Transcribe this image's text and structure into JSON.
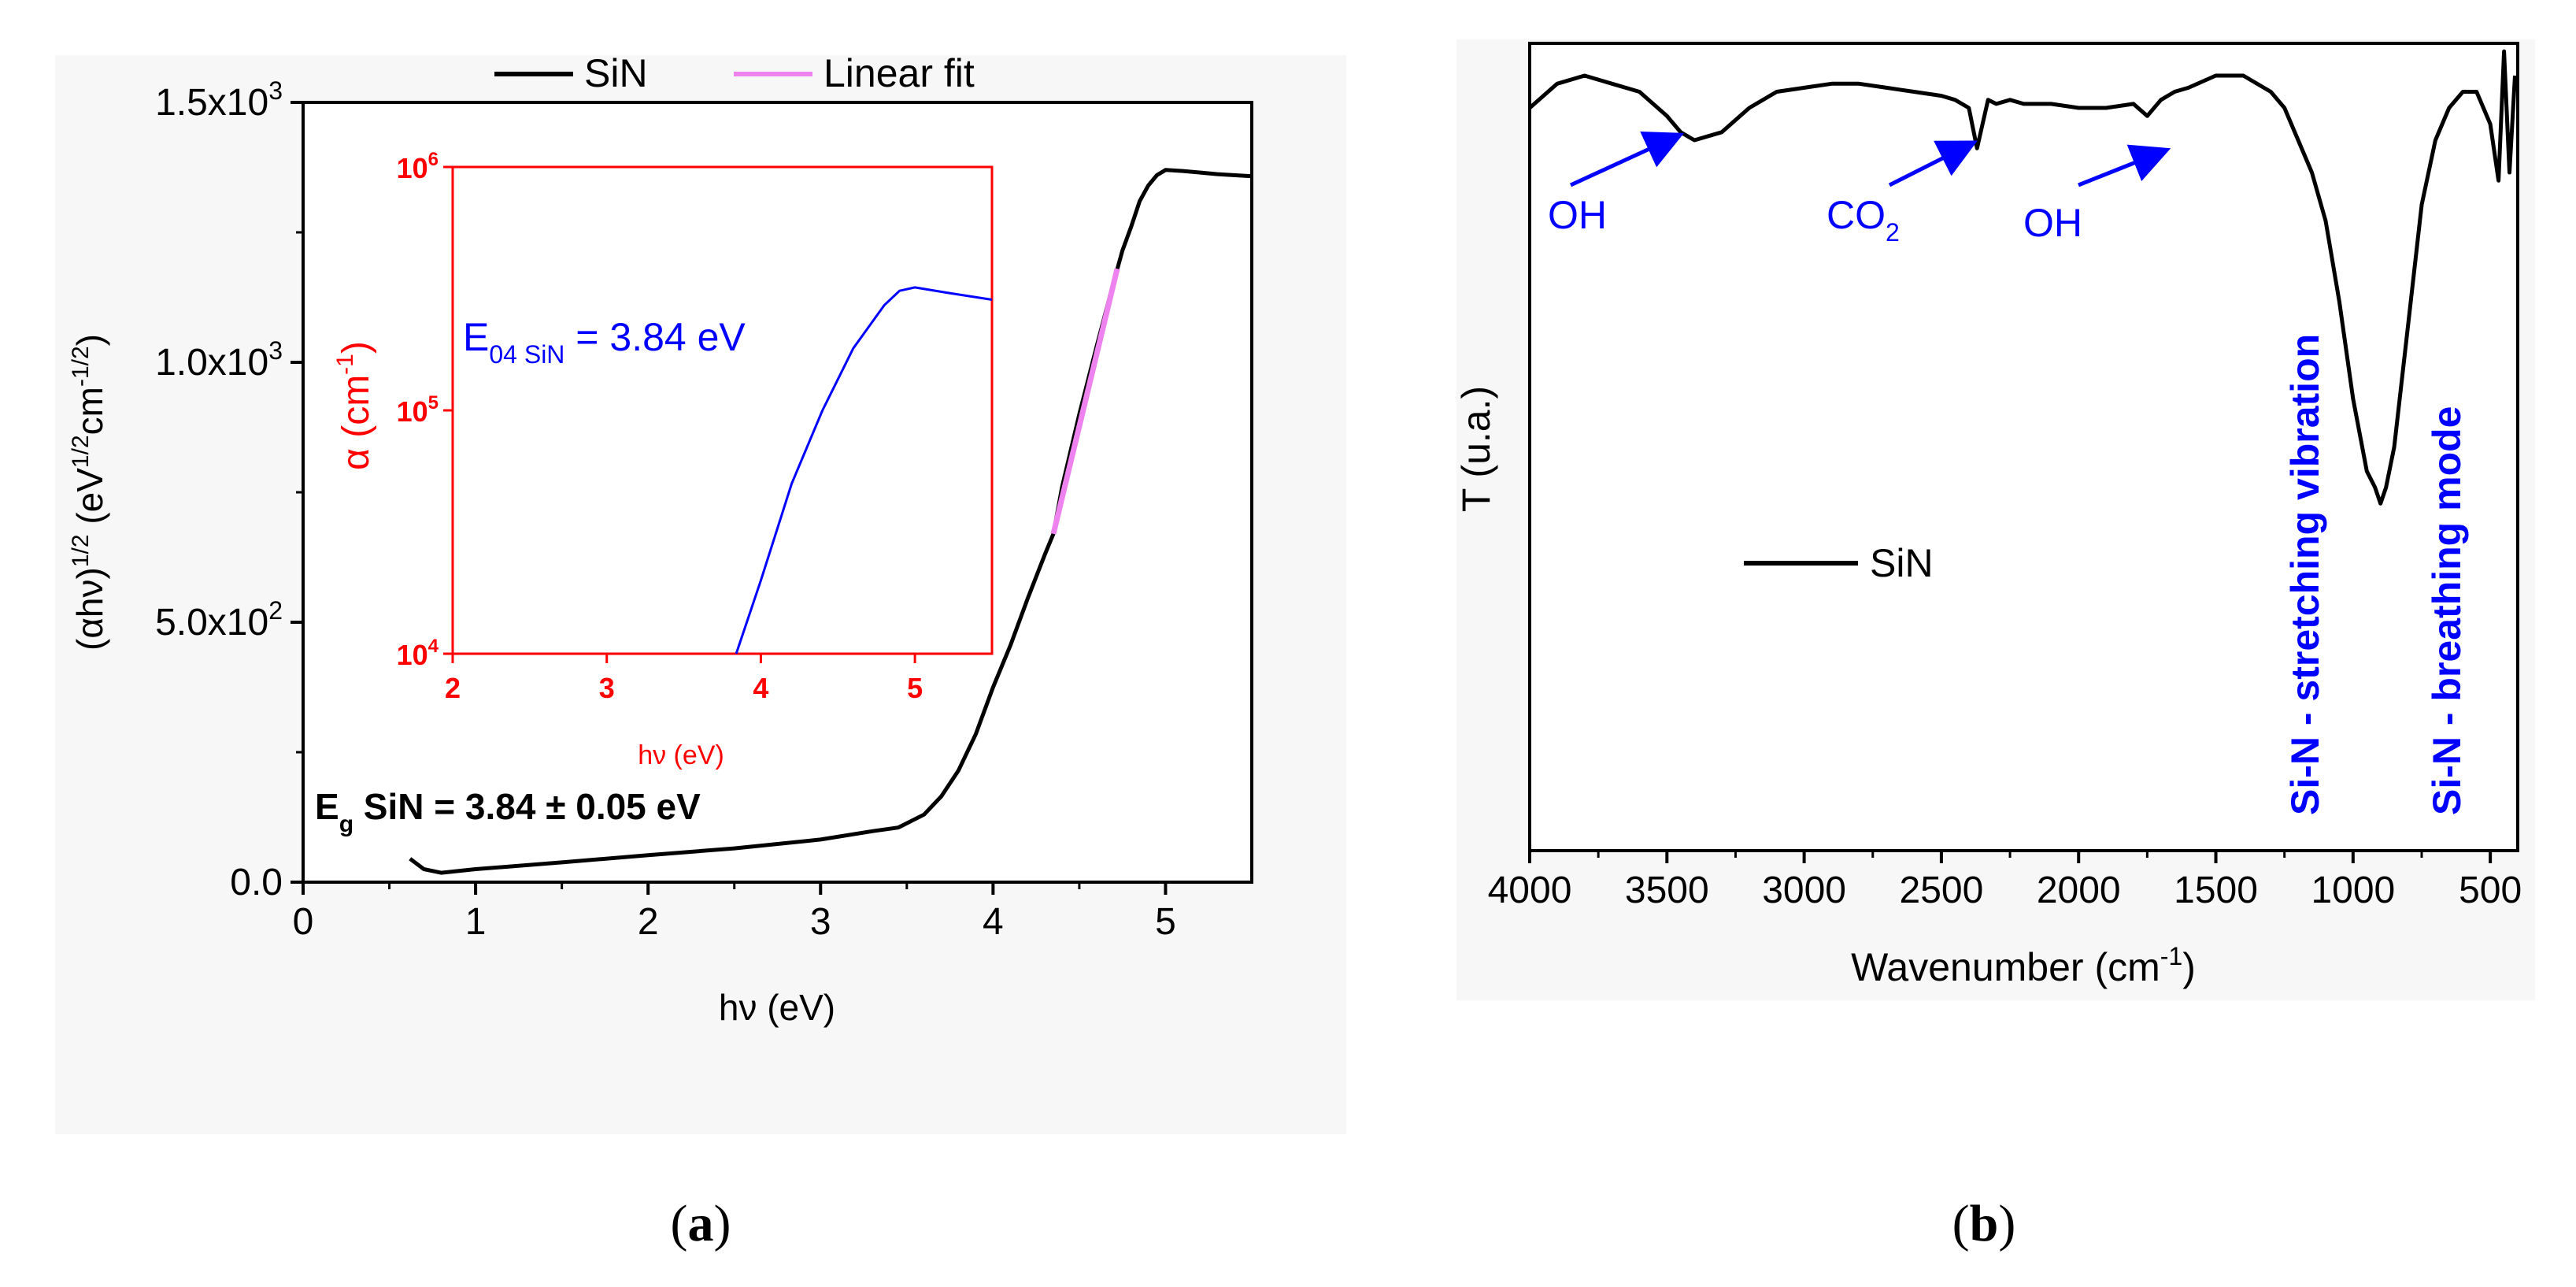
{
  "panel_a": {
    "caption_letter": "a",
    "legend": [
      {
        "label": "SiN",
        "color": "#000000"
      },
      {
        "label": "Linear fit",
        "color": "#ee82ee"
      }
    ],
    "annotation": {
      "main": "E",
      "sub": "g",
      "rest": " SiN = 3.84 ± 0.05 eV"
    }
  },
  "panel_b": {
    "caption_letter": "b",
    "legend": [
      {
        "label": "SiN",
        "color": "#000000"
      }
    ],
    "annotations": [
      {
        "text": "OH",
        "x": 3700
      },
      {
        "main": "CO",
        "sub": "2",
        "x": 2450
      },
      {
        "text": "OH",
        "x": 1800
      },
      {
        "text": "Si-N - stretching vibration",
        "x": 1190
      },
      {
        "text": "Si-N - breathing mode",
        "x": 680
      }
    ]
  },
  "chart_data": [
    {
      "id": "a_main",
      "type": "line",
      "xlabel": "hν (eV)",
      "ylabel": {
        "base": "(αhν)",
        "exp1": "1/2",
        "unit": " (eV",
        "exp2": "1/2",
        "unit2": "cm",
        "exp3": "-1/2",
        "close": ")"
      },
      "xlim": [
        0,
        5.5
      ],
      "ylim": [
        0,
        1500
      ],
      "xticks": [
        0,
        1,
        2,
        3,
        4,
        5
      ],
      "yticks": [
        {
          "value": 0,
          "label": "0.0",
          "exp": ""
        },
        {
          "value": 500,
          "label": "5.0x10",
          "exp": "2"
        },
        {
          "value": 1000,
          "label": "1.0x10",
          "exp": "3"
        },
        {
          "value": 1500,
          "label": "1.5x10",
          "exp": "3"
        }
      ],
      "series": [
        {
          "name": "SiN",
          "color": "#000000",
          "x": [
            0.62,
            0.7,
            0.8,
            1.0,
            1.5,
            2.0,
            2.5,
            3.0,
            3.3,
            3.45,
            3.6,
            3.7,
            3.8,
            3.9,
            4.0,
            4.1,
            4.2,
            4.3,
            4.35,
            4.4,
            4.5,
            4.6,
            4.7,
            4.75,
            4.8,
            4.85,
            4.9,
            4.95,
            5.0,
            5.1,
            5.3,
            5.5
          ],
          "y": [
            45,
            25,
            18,
            25,
            38,
            52,
            65,
            82,
            98,
            105,
            130,
            165,
            215,
            285,
            375,
            455,
            545,
            630,
            670,
            760,
            900,
            1030,
            1155,
            1215,
            1260,
            1310,
            1340,
            1360,
            1370,
            1368,
            1362,
            1358
          ]
        },
        {
          "name": "Linear fit",
          "color": "#ee82ee",
          "x": [
            4.35,
            4.72
          ],
          "y": [
            670,
            1180
          ]
        }
      ]
    },
    {
      "id": "a_inset",
      "type": "line",
      "xlabel": "hν (eV)",
      "ylabel": "α (cm",
      "ylabel_exp": "-1",
      "ylabel_close": ")",
      "xlim": [
        2,
        5.5
      ],
      "ylim": [
        10000,
        1000000
      ],
      "yscale": "log",
      "xticks": [
        2,
        3,
        4,
        5
      ],
      "yticks": [
        {
          "value": 10000,
          "base": "10",
          "exp": "4"
        },
        {
          "value": 100000,
          "base": "10",
          "exp": "5"
        },
        {
          "value": 1000000,
          "base": "10",
          "exp": "6"
        }
      ],
      "annotation": {
        "main": "E",
        "sub": "04 SiN",
        "rest": " = 3.84 eV"
      },
      "series": [
        {
          "name": "α",
          "color": "#0000ff",
          "x": [
            3.84,
            4.0,
            4.2,
            4.4,
            4.6,
            4.8,
            4.9,
            5.0,
            5.2,
            5.5
          ],
          "y": [
            10000,
            20000,
            50000,
            100000,
            180000,
            270000,
            310000,
            320000,
            305000,
            285000
          ]
        }
      ]
    },
    {
      "id": "b_ftir",
      "type": "line",
      "xlabel": "Wavenumber (cm",
      "xlabel_exp": "-1",
      "xlabel_close": ")",
      "ylabel": "T (u.a.)",
      "xlim": [
        4000,
        400
      ],
      "ylim": [
        0,
        1
      ],
      "xticks": [
        4000,
        3500,
        3000,
        2500,
        2000,
        1500,
        1000,
        500
      ],
      "series": [
        {
          "name": "SiN",
          "color": "#000000",
          "x": [
            4000,
            3900,
            3800,
            3700,
            3600,
            3500,
            3450,
            3400,
            3300,
            3200,
            3100,
            3000,
            2900,
            2800,
            2700,
            2600,
            2500,
            2450,
            2400,
            2370,
            2350,
            2330,
            2300,
            2250,
            2200,
            2100,
            2000,
            1900,
            1800,
            1750,
            1700,
            1650,
            1600,
            1500,
            1400,
            1300,
            1250,
            1200,
            1150,
            1100,
            1050,
            1000,
            950,
            920,
            900,
            880,
            850,
            800,
            750,
            700,
            650,
            600,
            550,
            500,
            470,
            450,
            430,
            410
          ],
          "y": [
            0.92,
            0.95,
            0.96,
            0.95,
            0.94,
            0.91,
            0.89,
            0.88,
            0.89,
            0.92,
            0.94,
            0.945,
            0.95,
            0.95,
            0.945,
            0.94,
            0.935,
            0.93,
            0.92,
            0.87,
            0.9,
            0.93,
            0.925,
            0.93,
            0.925,
            0.925,
            0.92,
            0.92,
            0.925,
            0.91,
            0.93,
            0.94,
            0.945,
            0.96,
            0.96,
            0.94,
            0.92,
            0.88,
            0.84,
            0.78,
            0.68,
            0.56,
            0.47,
            0.45,
            0.43,
            0.45,
            0.5,
            0.65,
            0.8,
            0.88,
            0.92,
            0.94,
            0.94,
            0.9,
            0.83,
            0.99,
            0.84,
            0.96
          ]
        }
      ]
    }
  ]
}
